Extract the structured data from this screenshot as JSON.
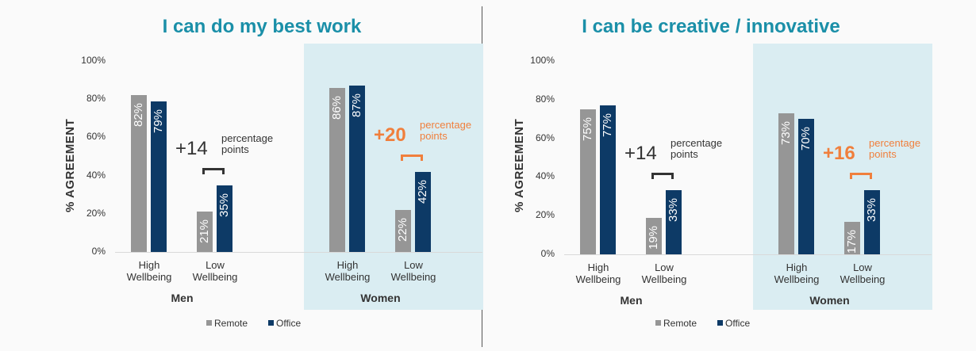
{
  "charts": [
    {
      "type": "bar",
      "title": "I can do my best work",
      "y_label": "% AGREEMENT",
      "ylim": [
        0,
        100
      ],
      "yticks": [
        {
          "value": 0,
          "label": "0%"
        },
        {
          "value": 20,
          "label": "20%"
        },
        {
          "value": 40,
          "label": "40%"
        },
        {
          "value": 60,
          "label": "60%"
        },
        {
          "value": 80,
          "label": "80%"
        },
        {
          "value": 100,
          "label": "100%"
        }
      ],
      "groups": [
        "Men",
        "Women"
      ],
      "categories": [
        "High Wellbeing",
        "Low Wellbeing",
        "High Wellbeing",
        "Low Wellbeing"
      ],
      "series": [
        {
          "name": "Remote",
          "color": "#969696",
          "values": [
            82,
            21,
            86,
            22
          ],
          "value_labels": [
            "82%",
            "21%",
            "86%",
            "22%"
          ]
        },
        {
          "name": "Office",
          "color": "#0d3a66",
          "values": [
            79,
            35,
            87,
            42
          ],
          "value_labels": [
            "79%",
            "35%",
            "87%",
            "42%"
          ]
        }
      ],
      "annotations": [
        {
          "label": "+14",
          "text": "percentage points",
          "color": "#333333"
        },
        {
          "label": "+20",
          "text": "percentage points",
          "color": "#f07f3c"
        }
      ],
      "highlight_group": 1,
      "highlight_color": "#daedf2"
    },
    {
      "type": "bar",
      "title": "I can be creative / innovative",
      "y_label": "% AGREEMENT",
      "ylim": [
        0,
        100
      ],
      "yticks": [
        {
          "value": 0,
          "label": "0%"
        },
        {
          "value": 20,
          "label": "20%"
        },
        {
          "value": 40,
          "label": "40%"
        },
        {
          "value": 60,
          "label": "60%"
        },
        {
          "value": 80,
          "label": "80%"
        },
        {
          "value": 100,
          "label": "100%"
        }
      ],
      "groups": [
        "Men",
        "Women"
      ],
      "categories": [
        "High Wellbeing",
        "Low Wellbeing",
        "High Wellbeing",
        "Low Wellbeing"
      ],
      "series": [
        {
          "name": "Remote",
          "color": "#969696",
          "values": [
            75,
            19,
            73,
            17
          ],
          "value_labels": [
            "75%",
            "19%",
            "73%",
            "17%"
          ]
        },
        {
          "name": "Office",
          "color": "#0d3a66",
          "values": [
            77,
            33,
            70,
            33
          ],
          "value_labels": [
            "77%",
            "33%",
            "70%",
            "33%"
          ]
        }
      ],
      "annotations": [
        {
          "label": "+14",
          "text": "percentage points",
          "color": "#333333"
        },
        {
          "label": "+16",
          "text": "percentage points",
          "color": "#f07f3c"
        }
      ],
      "highlight_group": 1,
      "highlight_color": "#daedf2"
    }
  ]
}
